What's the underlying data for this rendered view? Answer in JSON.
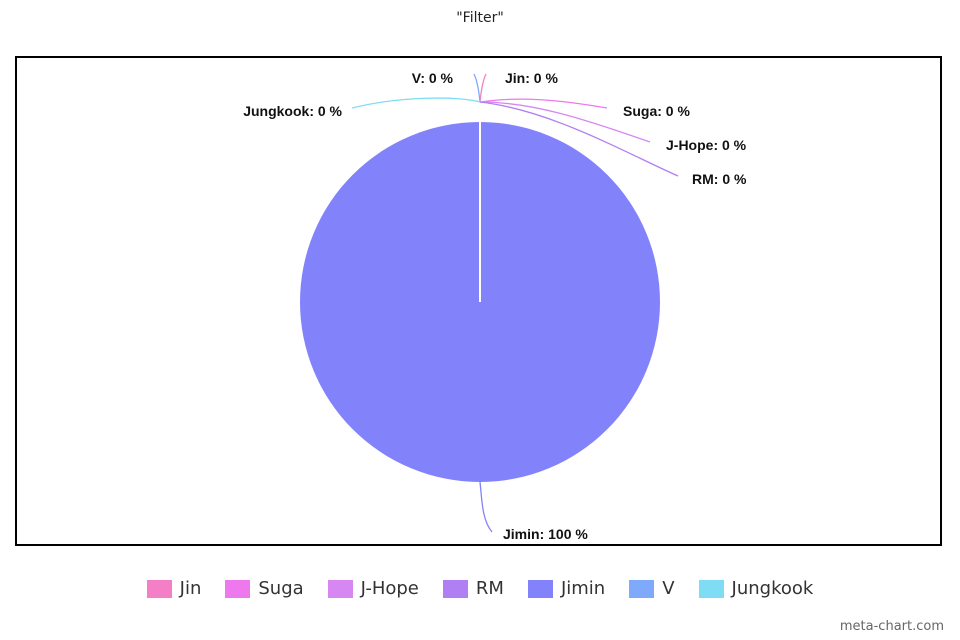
{
  "chart_data": {
    "type": "pie",
    "title": "\"Filter\"",
    "categories": [
      "Jin",
      "Suga",
      "J-Hope",
      "RM",
      "Jimin",
      "V",
      "Jungkook"
    ],
    "values": [
      0,
      0,
      0,
      0,
      100,
      0,
      0
    ],
    "labels": [
      "Jin: 0 %",
      "Suga: 0 %",
      "J-Hope: 0 %",
      "RM: 0 %",
      "Jimin: 100 %",
      "V: 0 %",
      "Jungkook: 0 %"
    ],
    "colors": [
      "#f47fc6",
      "#ee78ee",
      "#d787f2",
      "#b07ff3",
      "#8283fb",
      "#7fa9fb",
      "#7fdcf5"
    ],
    "legend_position": "bottom"
  },
  "watermark": "meta-chart.com"
}
